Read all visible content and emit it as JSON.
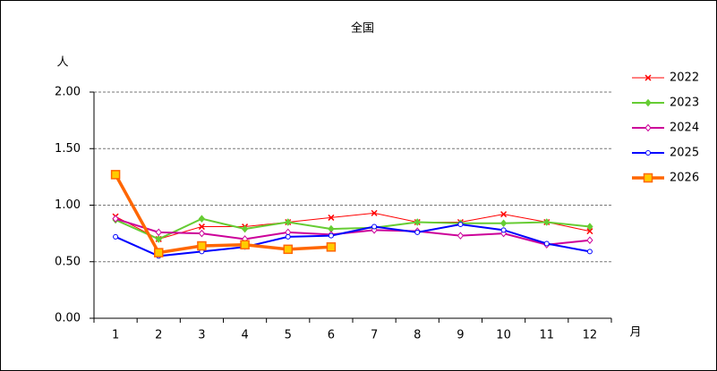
{
  "chart_data": {
    "type": "line",
    "title": "全国",
    "ylabel": "人",
    "xlabel": "月",
    "categories": [
      "1",
      "2",
      "3",
      "4",
      "5",
      "6",
      "7",
      "8",
      "9",
      "10",
      "11",
      "12"
    ],
    "ylim": [
      0,
      2
    ],
    "yticks": [
      {
        "value": 0,
        "label": "0.00"
      },
      {
        "value": 0.5,
        "label": "0.50"
      },
      {
        "value": 1,
        "label": "1.00"
      },
      {
        "value": 1.5,
        "label": "1.50"
      },
      {
        "value": 2,
        "label": "2.00"
      }
    ],
    "grid": true,
    "series": [
      {
        "name": "2022",
        "color": "#ff0000",
        "marker": "x",
        "values": [
          0.9,
          0.7,
          0.81,
          0.81,
          0.85,
          0.89,
          0.93,
          0.85,
          0.85,
          0.92,
          0.85,
          0.77
        ]
      },
      {
        "name": "2023",
        "color": "#66cc33",
        "marker": "diamond",
        "values": [
          0.87,
          0.7,
          0.88,
          0.79,
          0.85,
          0.79,
          0.8,
          0.85,
          0.84,
          0.84,
          0.85,
          0.81
        ]
      },
      {
        "name": "2024",
        "color": "#cc0099",
        "marker": "diamond-open",
        "values": [
          0.88,
          0.76,
          0.75,
          0.7,
          0.76,
          0.74,
          0.78,
          0.77,
          0.73,
          0.75,
          0.65,
          0.69
        ]
      },
      {
        "name": "2025",
        "color": "#0000ff",
        "marker": "circle",
        "values": [
          0.72,
          0.55,
          0.59,
          0.63,
          0.72,
          0.73,
          0.81,
          0.76,
          0.83,
          0.78,
          0.66,
          0.59
        ]
      },
      {
        "name": "2026",
        "color": "#ff6600",
        "marker": "square",
        "values": [
          1.27,
          0.58,
          0.64,
          0.65,
          0.61,
          0.63,
          null,
          null,
          null,
          null,
          null,
          null
        ]
      }
    ]
  }
}
